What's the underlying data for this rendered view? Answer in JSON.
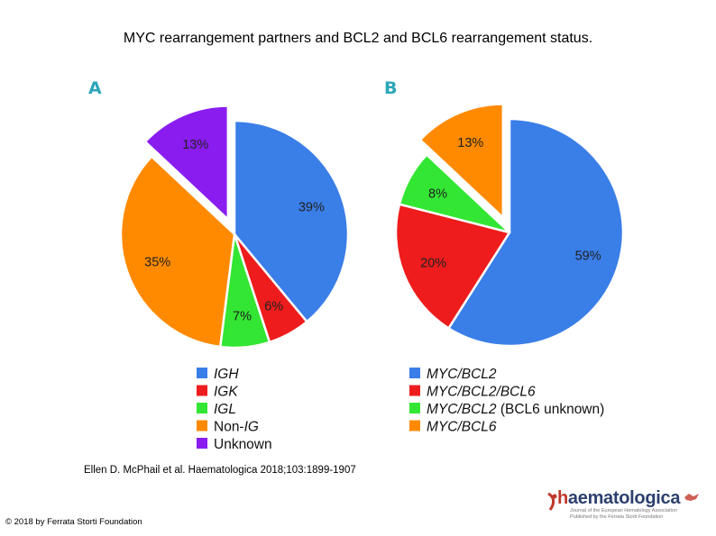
{
  "title": "MYC rearrangement partners and BCL2 and BCL6 rearrangement status.",
  "citation": "Ellen D. McPhail et al. Haematologica 2018;103:1899-1907",
  "copyright": "© 2018 by Ferrata Storti Foundation",
  "logo": {
    "text_h": "h",
    "text_rest": "aematologica",
    "subtitle_line1": "Journal of the European Hematology Association",
    "subtitle_line2": "Published by the Ferrata Storti Foundation"
  },
  "colors": {
    "blue": "#3a7ee8",
    "red": "#ee1c1c",
    "green": "#33e633",
    "orange": "#ff8a00",
    "purple": "#8a1cf0",
    "panel_letter": "#2ba6b8"
  },
  "chart_data": [
    {
      "type": "pie",
      "panel": "A",
      "slices": [
        {
          "label": "IGH",
          "value": 39,
          "text": "39%",
          "color": "#3a7ee8",
          "exploded": false
        },
        {
          "label": "IGK",
          "value": 6,
          "text": "6%",
          "color": "#ee1c1c",
          "exploded": false
        },
        {
          "label": "IGL",
          "value": 7,
          "text": "7%",
          "color": "#33e633",
          "exploded": false
        },
        {
          "label": "Non-IG",
          "value": 35,
          "text": "35%",
          "color": "#ff8a00",
          "exploded": false
        },
        {
          "label": "Unknown",
          "value": 13,
          "text": "13%",
          "color": "#8a1cf0",
          "exploded": true
        }
      ],
      "legend": [
        {
          "pre": "",
          "it": "IGH",
          "post": "",
          "color": "#3a7ee8"
        },
        {
          "pre": "",
          "it": "IGK",
          "post": "",
          "color": "#ee1c1c"
        },
        {
          "pre": "",
          "it": "IGL",
          "post": "",
          "color": "#33e633"
        },
        {
          "pre": "Non-",
          "it": "IG",
          "post": "",
          "color": "#ff8a00"
        },
        {
          "pre": "Unknown",
          "it": "",
          "post": "",
          "color": "#8a1cf0"
        }
      ]
    },
    {
      "type": "pie",
      "panel": "B",
      "slices": [
        {
          "label": "MYC/BCL2",
          "value": 59,
          "text": "59%",
          "color": "#3a7ee8",
          "exploded": false
        },
        {
          "label": "MYC/BCL2/BCL6",
          "value": 20,
          "text": "20%",
          "color": "#ee1c1c",
          "exploded": false
        },
        {
          "label": "MYC/BCL2 (BCL6 unknown)",
          "value": 8,
          "text": "8%",
          "color": "#33e633",
          "exploded": false
        },
        {
          "label": "MYC/BCL6",
          "value": 13,
          "text": "13%",
          "color": "#ff8a00",
          "exploded": true
        }
      ],
      "legend": [
        {
          "pre": "",
          "it": "MYC/BCL2",
          "post": "",
          "color": "#3a7ee8"
        },
        {
          "pre": "",
          "it": "MYC/BCL2/BCL6",
          "post": "",
          "color": "#ee1c1c"
        },
        {
          "pre": "",
          "it": "MYC/BCL2",
          "post": " (BCL6 unknown)",
          "color": "#33e633"
        },
        {
          "pre": "",
          "it": "MYC/BCL6",
          "post": "",
          "color": "#ff8a00"
        }
      ]
    }
  ]
}
